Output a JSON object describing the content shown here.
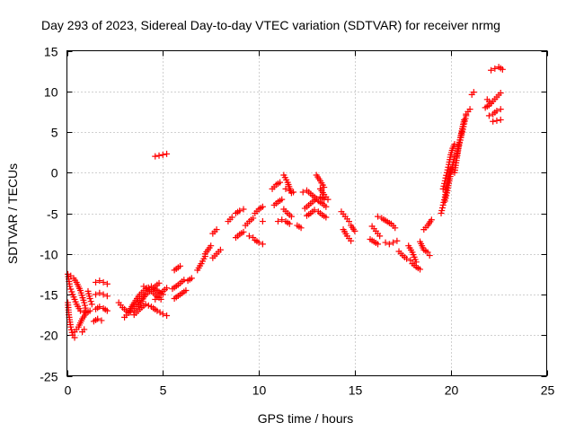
{
  "chart_data": {
    "type": "scatter",
    "title": "Day 293 of 2023, Sidereal Day-to-day VTEC variation (SDTVAR) for receiver nrmg",
    "xlabel": "GPS time / hours",
    "ylabel": "SDTVAR / TECUs",
    "xlim": [
      0,
      25
    ],
    "ylim": [
      -25,
      15
    ],
    "xticks": [
      0,
      5,
      10,
      15,
      20,
      25
    ],
    "yticks": [
      -25,
      -20,
      -15,
      -10,
      -5,
      0,
      5,
      10,
      15
    ],
    "grid": true,
    "marker": "+",
    "color": "#ff0000",
    "segments": [
      {
        "x": [
          0.05,
          0.15,
          0.3,
          0.5,
          0.7,
          0.9
        ],
        "y": [
          -12.5,
          -14.0,
          -15.0,
          -16.2,
          -17.0,
          -17.2
        ]
      },
      {
        "x": [
          0.05,
          0.1,
          0.2,
          0.3,
          0.4
        ],
        "y": [
          -16.0,
          -17.5,
          -19.0,
          -20.0,
          -20.3
        ]
      },
      {
        "x": [
          0.2,
          0.35,
          0.5,
          0.7,
          0.9,
          1.0
        ],
        "y": [
          -12.7,
          -13.0,
          -13.5,
          -14.5,
          -16.0,
          -17.0
        ]
      },
      {
        "x": [
          0.4,
          0.6,
          0.8,
          1.0,
          1.2
        ],
        "y": [
          -19.6,
          -19.0,
          -18.0,
          -17.3,
          -17.0
        ]
      },
      {
        "x": [
          1.1,
          1.2,
          1.3
        ],
        "y": [
          -14.6,
          -15.5,
          -16.2
        ]
      },
      {
        "x": [
          1.5,
          1.7,
          1.9,
          2.1
        ],
        "y": [
          -13.5,
          -13.3,
          -13.5,
          -13.7
        ]
      },
      {
        "x": [
          1.5,
          1.7,
          1.9,
          2.1
        ],
        "y": [
          -15.0,
          -14.8,
          -15.0,
          -15.2
        ]
      },
      {
        "x": [
          1.5,
          1.7,
          1.9,
          2.1
        ],
        "y": [
          -16.8,
          -16.5,
          -16.7,
          -17.0
        ]
      },
      {
        "x": [
          1.4,
          1.6,
          1.8
        ],
        "y": [
          -18.3,
          -18.0,
          -18.2
        ]
      },
      {
        "x": [
          0.8,
          0.9
        ],
        "y": [
          -19.6,
          -19.3
        ]
      },
      {
        "x": [
          2.7,
          2.9,
          3.1,
          3.3,
          3.5,
          3.7,
          3.9,
          4.1
        ],
        "y": [
          -16.0,
          -16.6,
          -17.0,
          -17.2,
          -17.0,
          -16.5,
          -15.8,
          -15.0
        ]
      },
      {
        "x": [
          3.0,
          3.3,
          3.6,
          3.9,
          4.2,
          4.5,
          4.8
        ],
        "y": [
          -17.8,
          -17.0,
          -16.2,
          -15.5,
          -14.8,
          -14.2,
          -13.6
        ]
      },
      {
        "x": [
          3.2,
          3.5,
          3.8,
          4.1,
          4.4,
          4.7,
          5.0
        ],
        "y": [
          -17.2,
          -16.0,
          -15.0,
          -14.3,
          -14.0,
          -14.5,
          -15.0
        ]
      },
      {
        "x": [
          3.5,
          3.8,
          4.1,
          4.4,
          4.7,
          5.0,
          5.2
        ],
        "y": [
          -17.5,
          -16.8,
          -16.2,
          -16.5,
          -17.0,
          -17.4,
          -17.6
        ]
      },
      {
        "x": [
          4.0,
          4.3,
          4.6,
          4.9
        ],
        "y": [
          -14.0,
          -14.4,
          -15.0,
          -15.6
        ]
      },
      {
        "x": [
          4.6,
          4.8,
          5.0,
          5.2
        ],
        "y": [
          -15.6,
          -15.0,
          -14.6,
          -14.2
        ]
      },
      {
        "x": [
          4.6,
          4.8,
          5.0,
          5.2
        ],
        "y": [
          2.0,
          2.1,
          2.2,
          2.3
        ]
      },
      {
        "x": [
          5.5,
          5.8,
          6.1
        ],
        "y": [
          -14.3,
          -13.8,
          -13.2
        ]
      },
      {
        "x": [
          5.6,
          5.9,
          6.2
        ],
        "y": [
          -15.5,
          -15.0,
          -14.5
        ]
      },
      {
        "x": [
          5.6,
          5.9
        ],
        "y": [
          -12.0,
          -11.5
        ]
      },
      {
        "x": [
          6.3,
          6.5
        ],
        "y": [
          -13.3,
          -13.0
        ]
      },
      {
        "x": [
          6.8,
          7.0,
          7.2
        ],
        "y": [
          -12.0,
          -11.2,
          -10.3
        ]
      },
      {
        "x": [
          7.2,
          7.5
        ],
        "y": [
          -10.0,
          -9.0
        ]
      },
      {
        "x": [
          7.6,
          7.8,
          8.0
        ],
        "y": [
          -10.5,
          -10.0,
          -9.5
        ]
      },
      {
        "x": [
          7.6,
          7.8
        ],
        "y": [
          -7.5,
          -7.0
        ]
      },
      {
        "x": [
          8.4,
          8.6
        ],
        "y": [
          -6.0,
          -5.5
        ]
      },
      {
        "x": [
          8.8,
          9.0,
          9.2
        ],
        "y": [
          -8.0,
          -7.6,
          -7.3
        ]
      },
      {
        "x": [
          8.8,
          9.0,
          9.2
        ],
        "y": [
          -5.0,
          -4.7,
          -4.5
        ]
      },
      {
        "x": [
          9.3,
          9.5,
          9.7
        ],
        "y": [
          -6.5,
          -6.0,
          -5.6
        ]
      },
      {
        "x": [
          9.5,
          9.7
        ],
        "y": [
          -7.8,
          -8.0
        ]
      },
      {
        "x": [
          9.8,
          10.0,
          10.2
        ],
        "y": [
          -5.0,
          -4.5,
          -4.2
        ]
      },
      {
        "x": [
          9.8,
          10.0,
          10.2
        ],
        "y": [
          -8.3,
          -8.6,
          -8.8
        ]
      },
      {
        "x": [
          10.2
        ],
        "y": [
          -6.0
        ]
      },
      {
        "x": [
          10.7,
          10.9,
          11.1
        ],
        "y": [
          -2.0,
          -1.5,
          -1.2
        ]
      },
      {
        "x": [
          10.8,
          11.0,
          11.2
        ],
        "y": [
          -4.0,
          -3.6,
          -3.3
        ]
      },
      {
        "x": [
          11.0,
          11.2,
          11.4,
          11.6
        ],
        "y": [
          -6.0,
          -5.8,
          -6.0,
          -6.3
        ]
      },
      {
        "x": [
          11.3,
          11.5,
          11.7
        ],
        "y": [
          -0.3,
          -1.2,
          -2.5
        ]
      },
      {
        "x": [
          11.3,
          11.5,
          11.7
        ],
        "y": [
          -4.5,
          -5.0,
          -5.4
        ]
      },
      {
        "x": [
          11.4,
          11.6,
          11.8
        ],
        "y": [
          -2.0,
          -2.2,
          -2.4
        ]
      },
      {
        "x": [
          12.0,
          12.2
        ],
        "y": [
          -6.5,
          -6.8
        ]
      },
      {
        "x": [
          12.3,
          12.5,
          12.7,
          12.9,
          13.1,
          13.3,
          13.5
        ],
        "y": [
          -2.4,
          -2.2,
          -2.6,
          -3.0,
          -3.5,
          -3.8,
          -4.2
        ]
      },
      {
        "x": [
          12.4,
          12.6,
          12.8,
          13.0,
          13.2,
          13.4
        ],
        "y": [
          -4.4,
          -4.0,
          -3.6,
          -3.2,
          -3.0,
          -3.3
        ]
      },
      {
        "x": [
          12.5,
          12.7,
          12.9,
          13.1,
          13.3,
          13.5
        ],
        "y": [
          -5.3,
          -5.0,
          -4.6,
          -4.8,
          -5.2,
          -5.5
        ]
      },
      {
        "x": [
          13.0,
          13.2,
          13.4
        ],
        "y": [
          -0.3,
          -1.0,
          -1.8
        ]
      },
      {
        "x": [
          13.2,
          13.4,
          13.6
        ],
        "y": [
          -2.0,
          -2.7,
          -3.3
        ]
      },
      {
        "x": [
          14.3,
          14.5,
          14.7
        ],
        "y": [
          -4.8,
          -5.4,
          -6.0
        ]
      },
      {
        "x": [
          14.4,
          14.6,
          14.8
        ],
        "y": [
          -7.0,
          -7.8,
          -8.4
        ]
      },
      {
        "x": [
          14.8,
          15.0
        ],
        "y": [
          -6.5,
          -7.2
        ]
      },
      {
        "x": [
          15.9,
          16.1,
          16.3
        ],
        "y": [
          -6.6,
          -7.2,
          -7.8
        ]
      },
      {
        "x": [
          15.8,
          16.0,
          16.2
        ],
        "y": [
          -8.2,
          -8.5,
          -8.8
        ]
      },
      {
        "x": [
          16.2,
          16.4,
          16.6,
          16.8
        ],
        "y": [
          -5.4,
          -5.6,
          -5.9,
          -6.2
        ]
      },
      {
        "x": [
          16.6,
          16.8,
          17.0,
          17.2
        ],
        "y": [
          -8.6,
          -8.8,
          -8.6,
          -8.4
        ]
      },
      {
        "x": [
          16.9,
          17.1
        ],
        "y": [
          -6.3,
          -6.8
        ]
      },
      {
        "x": [
          17.3,
          17.5,
          17.7,
          17.9
        ],
        "y": [
          -9.7,
          -10.2,
          -10.6,
          -10.8
        ]
      },
      {
        "x": [
          17.8,
          18.0,
          18.2
        ],
        "y": [
          -9.0,
          -9.8,
          -11.0
        ]
      },
      {
        "x": [
          18.0,
          18.2,
          18.4
        ],
        "y": [
          -11.2,
          -11.6,
          -11.9
        ]
      },
      {
        "x": [
          18.4,
          18.6,
          18.8,
          18.9
        ],
        "y": [
          -8.5,
          -9.5,
          -9.8,
          -10.2
        ]
      },
      {
        "x": [
          18.6,
          18.8,
          19.0
        ],
        "y": [
          -7.0,
          -6.5,
          -5.8
        ]
      },
      {
        "x": [
          19.5,
          19.6,
          19.7,
          19.8,
          19.9,
          20.0
        ],
        "y": [
          -5.0,
          -4.0,
          -3.0,
          -1.5,
          -0.5,
          0.5
        ]
      },
      {
        "x": [
          19.6,
          19.7,
          19.8,
          19.9,
          20.0,
          20.1,
          20.2
        ],
        "y": [
          -2.0,
          -1.0,
          0.0,
          1.0,
          2.2,
          3.0,
          3.5
        ]
      },
      {
        "x": [
          19.7,
          19.8,
          19.9,
          20.0,
          20.1,
          20.2
        ],
        "y": [
          -3.5,
          -2.5,
          -1.3,
          -0.2,
          1.0,
          2.0
        ]
      },
      {
        "x": [
          20.2,
          20.3,
          20.4,
          20.5,
          20.6,
          20.7,
          20.8
        ],
        "y": [
          0.0,
          1.5,
          3.0,
          4.0,
          5.0,
          6.0,
          7.0
        ]
      },
      {
        "x": [
          20.3,
          20.4,
          20.5,
          20.6,
          20.7
        ],
        "y": [
          2.0,
          3.2,
          4.3,
          5.4,
          6.5
        ]
      },
      {
        "x": [
          20.8,
          21.0
        ],
        "y": [
          7.2,
          7.8
        ]
      },
      {
        "x": [
          21.1,
          21.2
        ],
        "y": [
          9.6,
          9.9
        ]
      },
      {
        "x": [
          21.8,
          22.0,
          22.2,
          22.4,
          22.6
        ],
        "y": [
          8.0,
          8.3,
          8.8,
          9.3,
          9.8
        ]
      },
      {
        "x": [
          22.0,
          22.2,
          22.4,
          22.6
        ],
        "y": [
          7.0,
          7.2,
          7.6,
          7.8
        ]
      },
      {
        "x": [
          22.2,
          22.4,
          22.6
        ],
        "y": [
          6.3,
          6.4,
          6.5
        ]
      },
      {
        "x": [
          21.9,
          22.1
        ],
        "y": [
          9.0,
          8.5
        ]
      },
      {
        "x": [
          22.1,
          22.3,
          22.5,
          22.7
        ],
        "y": [
          12.6,
          12.8,
          13.0,
          12.7
        ]
      }
    ]
  }
}
